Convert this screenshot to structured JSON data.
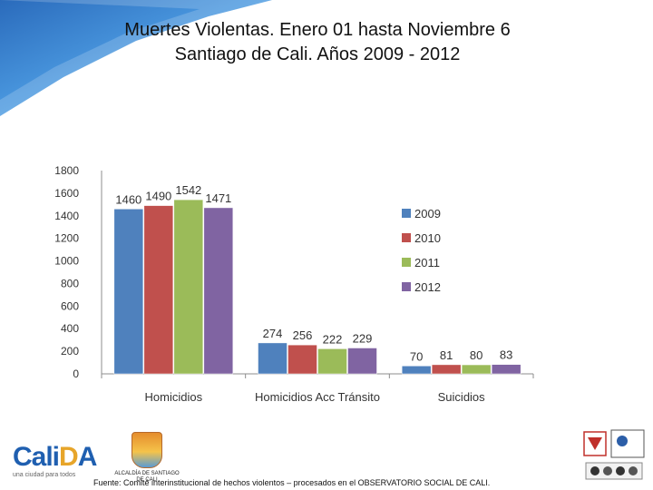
{
  "title_line1": "Muertes Violentas. Enero 01 hasta Noviembre 6",
  "title_line2": "Santiago de Cali. Años  2009 - 2012",
  "source": "Fuente: Comité interinstitucional de hechos violentos – procesados en el OBSERVATORIO SOCIAL DE CALI.",
  "logos": {
    "cali_brand": "CaliDA",
    "cali_tagline": "una ciudad para todos",
    "alcaldia_text": "ALCALDÍA DE SANTIAGO DE CALI"
  },
  "colors": {
    "2009": "#4f81bd",
    "2010": "#c0504d",
    "2011": "#9bbb59",
    "2012": "#8064a2",
    "axis": "#8c8c8c",
    "banner": "#2e75c8"
  },
  "chart_data": {
    "type": "bar",
    "title": "Muertes Violentas. Enero 01 hasta Noviembre 6 Santiago de Cali. Años  2009 - 2012",
    "categories": [
      "Homicidios",
      "Homicidios Acc Tránsito",
      "Suicidios"
    ],
    "series": [
      {
        "name": "2009",
        "values": [
          1460,
          274,
          70
        ]
      },
      {
        "name": "2010",
        "values": [
          1490,
          256,
          81
        ]
      },
      {
        "name": "2011",
        "values": [
          1542,
          222,
          80
        ]
      },
      {
        "name": "2012",
        "values": [
          1471,
          229,
          83
        ]
      }
    ],
    "yticks": [
      0,
      200,
      400,
      600,
      800,
      1000,
      1200,
      1400,
      1600,
      1800
    ],
    "ylim": [
      0,
      1800
    ],
    "legend_position": "right",
    "grid": false,
    "xlabel": "",
    "ylabel": ""
  }
}
